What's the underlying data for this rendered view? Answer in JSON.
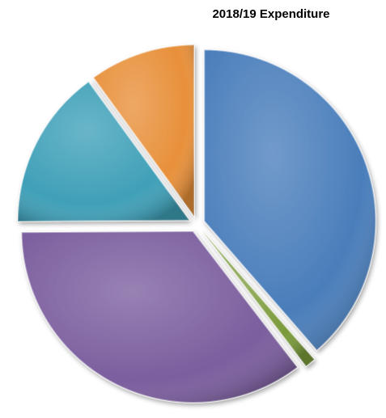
{
  "chart_data": {
    "type": "pie",
    "title": "2018/19 Expenditure",
    "values": [
      38.6,
      1,
      35.3,
      15.1,
      10
    ],
    "colors": [
      "#4a7ebb",
      "#7a9a3a",
      "#7b5e9e",
      "#3fa0b8",
      "#e8903a"
    ],
    "start_angle": 0,
    "direction": "clockwise",
    "exploded": true
  }
}
